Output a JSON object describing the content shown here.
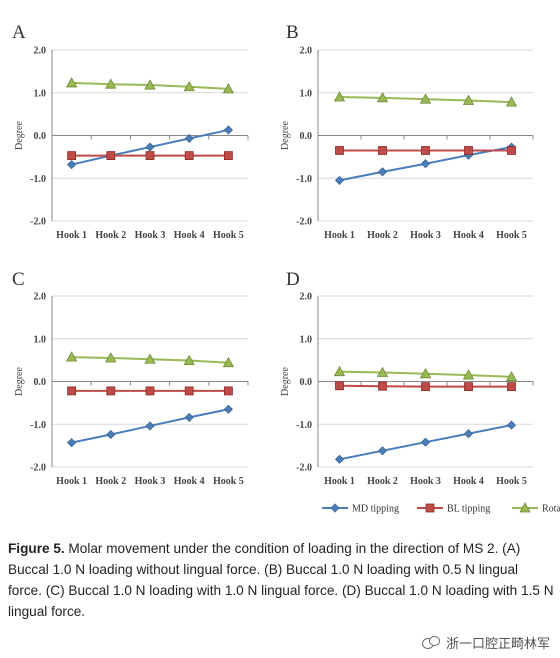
{
  "chart_data": [
    {
      "panel": "A",
      "type": "line",
      "ylabel": "Degree",
      "categories": [
        "Hook 1",
        "Hook 2",
        "Hook 3",
        "Hook 4",
        "Hook 5"
      ],
      "ylim": [
        -2.0,
        2.0
      ],
      "yticks": [
        "2.0",
        "1.0",
        "0.0",
        "-1.0",
        "-2.0"
      ],
      "grid": true,
      "series": [
        {
          "name": "MD tipping",
          "values": [
            -0.68,
            -0.47,
            -0.27,
            -0.07,
            0.13
          ]
        },
        {
          "name": "BL tipping",
          "values": [
            -0.47,
            -0.47,
            -0.47,
            -0.47,
            -0.47
          ]
        },
        {
          "name": "Rotation",
          "values": [
            1.23,
            1.2,
            1.18,
            1.14,
            1.09
          ]
        }
      ]
    },
    {
      "panel": "B",
      "type": "line",
      "ylabel": "Degree",
      "categories": [
        "Hook 1",
        "Hook 2",
        "Hook 3",
        "Hook 4",
        "Hook 5"
      ],
      "ylim": [
        -2.0,
        2.0
      ],
      "yticks": [
        "2.0",
        "1.0",
        "0.0",
        "-1.0",
        "-2.0"
      ],
      "grid": true,
      "series": [
        {
          "name": "MD tipping",
          "values": [
            -1.05,
            -0.85,
            -0.66,
            -0.46,
            -0.27
          ]
        },
        {
          "name": "BL tipping",
          "values": [
            -0.35,
            -0.35,
            -0.35,
            -0.35,
            -0.35
          ]
        },
        {
          "name": "Rotation",
          "values": [
            0.9,
            0.88,
            0.85,
            0.82,
            0.78
          ]
        }
      ]
    },
    {
      "panel": "C",
      "type": "line",
      "ylabel": "Degree",
      "categories": [
        "Hook 1",
        "Hook 2",
        "Hook 3",
        "Hook 4",
        "Hook 5"
      ],
      "ylim": [
        -2.0,
        2.0
      ],
      "yticks": [
        "2.0",
        "1.0",
        "0.0",
        "-1.0",
        "-2.0"
      ],
      "grid": true,
      "series": [
        {
          "name": "MD tipping",
          "values": [
            -1.43,
            -1.24,
            -1.04,
            -0.84,
            -0.65
          ]
        },
        {
          "name": "BL tipping",
          "values": [
            -0.22,
            -0.22,
            -0.22,
            -0.22,
            -0.22
          ]
        },
        {
          "name": "Rotation",
          "values": [
            0.57,
            0.55,
            0.52,
            0.49,
            0.44
          ]
        }
      ]
    },
    {
      "panel": "D",
      "type": "line",
      "ylabel": "Degree",
      "categories": [
        "Hook 1",
        "Hook 2",
        "Hook 3",
        "Hook 4",
        "Hook 5"
      ],
      "ylim": [
        -2.0,
        2.0
      ],
      "yticks": [
        "2.0",
        "1.0",
        "0.0",
        "-1.0",
        "-2.0"
      ],
      "grid": true,
      "series": [
        {
          "name": "MD tipping",
          "values": [
            -1.82,
            -1.62,
            -1.42,
            -1.22,
            -1.02
          ]
        },
        {
          "name": "BL tipping",
          "values": [
            -0.1,
            -0.11,
            -0.12,
            -0.12,
            -0.12
          ]
        },
        {
          "name": "Rotation",
          "values": [
            0.23,
            0.21,
            0.18,
            0.15,
            0.11
          ]
        }
      ]
    }
  ],
  "legend": {
    "placement": "bottom-right",
    "items": [
      {
        "name": "MD tipping",
        "color": "#4a7ebb",
        "marker": "diamond"
      },
      {
        "name": "BL tipping",
        "color": "#be4b48",
        "marker": "square"
      },
      {
        "name": "Rotation",
        "color": "#98b954",
        "marker": "triangle"
      }
    ]
  },
  "colors": {
    "md": "#4a7ebb",
    "md_edge": "#3a6496",
    "bl": "#be4b48",
    "bl_edge": "#8e2b29",
    "rot": "#98b954",
    "rot_edge": "#6e8a38",
    "grid": "#d9d9d9",
    "axis": "#888888"
  },
  "caption": {
    "label": "Figure 5.",
    "text": " Molar movement under the condition of loading in the direction of MS 2. (A) Buccal 1.0 N loading without lingual force. (B) Buccal 1.0 N loading with 0.5 N lingual force. (C) Buccal 1.0 N loading with 1.0 N lingual force. (D) Buccal 1.0 N loading with 1.5 N lingual force."
  },
  "watermark": {
    "text": "浙一口腔正畸林军",
    "icon": "wechat-icon"
  }
}
